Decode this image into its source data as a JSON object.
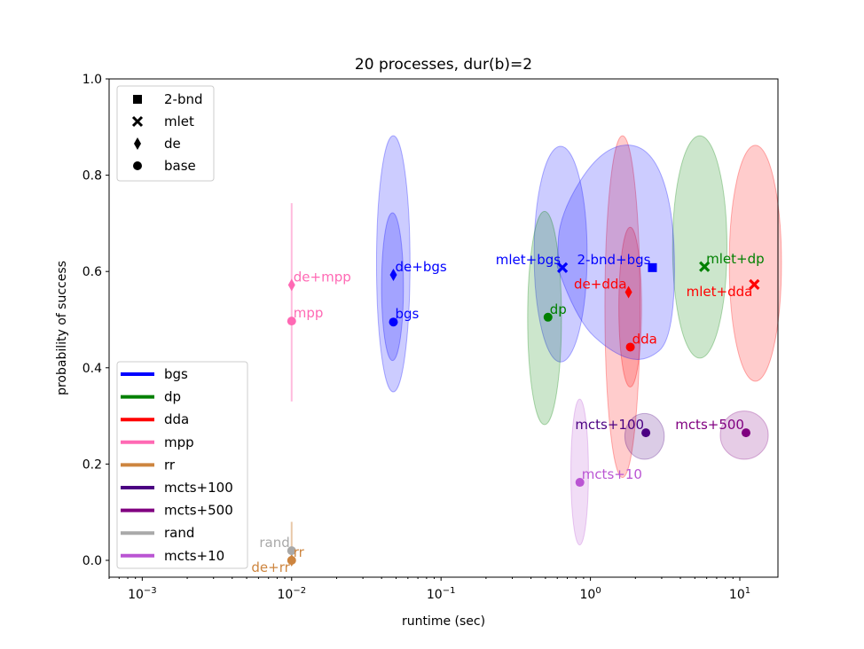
{
  "chart_data": {
    "type": "scatter",
    "title": "20 processes, dur(b)=2",
    "xlabel": "runtime (sec)",
    "ylabel": "probability of success",
    "xscale": "log",
    "xlim": [
      0.0006,
      18
    ],
    "ylim": [
      -0.035,
      1.0
    ],
    "xticks": [
      {
        "value": 0.001,
        "base": "10",
        "exp": "−3"
      },
      {
        "value": 0.01,
        "base": "10",
        "exp": "−2"
      },
      {
        "value": 0.1,
        "base": "10",
        "exp": "−1"
      },
      {
        "value": 1,
        "base": "10",
        "exp": "0"
      },
      {
        "value": 10,
        "base": "10",
        "exp": "1"
      }
    ],
    "yticks": [
      {
        "value": 0.0,
        "label": "0.0"
      },
      {
        "value": 0.2,
        "label": "0.2"
      },
      {
        "value": 0.4,
        "label": "0.4"
      },
      {
        "value": 0.6,
        "label": "0.6"
      },
      {
        "value": 0.8,
        "label": "0.8"
      },
      {
        "value": 1.0,
        "label": "1.0"
      }
    ],
    "marker_legend": [
      {
        "marker": "square",
        "label": "2-bnd"
      },
      {
        "marker": "x",
        "label": "mlet"
      },
      {
        "marker": "diamond",
        "label": "de"
      },
      {
        "marker": "circle",
        "label": "base"
      }
    ],
    "color_legend": [
      {
        "label": "bgs",
        "color": "#0000ff"
      },
      {
        "label": "dp",
        "color": "#008000"
      },
      {
        "label": "dda",
        "color": "#ff0000"
      },
      {
        "label": "mpp",
        "color": "#ff69b4"
      },
      {
        "label": "rr",
        "color": "#cd853f"
      },
      {
        "label": "mcts+100",
        "color": "#4b0082"
      },
      {
        "label": "mcts+500",
        "color": "#800080"
      },
      {
        "label": "rand",
        "color": "#a9a9a9"
      },
      {
        "label": "mcts+10",
        "color": "#ba55d3"
      }
    ],
    "points": [
      {
        "label": "bgs",
        "x": 0.048,
        "y": 0.495,
        "marker": "circle",
        "color": "#0000ff",
        "label_pos": "upper-right"
      },
      {
        "label": "de+bgs",
        "x": 0.048,
        "y": 0.593,
        "marker": "diamond",
        "color": "#0000ff",
        "label_pos": "upper-right"
      },
      {
        "label": "mlet+bgs",
        "x": 0.65,
        "y": 0.608,
        "marker": "x",
        "color": "#0000ff",
        "label_pos": "upper-left"
      },
      {
        "label": "2-bnd+bgs",
        "x": 2.6,
        "y": 0.608,
        "marker": "square",
        "color": "#0000ff",
        "label_pos": "upper-left"
      },
      {
        "label": "dp",
        "x": 0.52,
        "y": 0.505,
        "marker": "circle",
        "color": "#008000",
        "label_pos": "upper-right"
      },
      {
        "label": "mlet+dp",
        "x": 5.8,
        "y": 0.61,
        "marker": "x",
        "color": "#008000",
        "label_pos": "upper-right"
      },
      {
        "label": "dda",
        "x": 1.85,
        "y": 0.443,
        "marker": "circle",
        "color": "#ff0000",
        "label_pos": "upper-right"
      },
      {
        "label": "de+dda",
        "x": 1.8,
        "y": 0.557,
        "marker": "diamond",
        "color": "#ff0000",
        "label_pos": "upper-left"
      },
      {
        "label": "mlet+dda",
        "x": 12.5,
        "y": 0.573,
        "marker": "x",
        "color": "#ff0000",
        "label_pos": "lower-left"
      },
      {
        "label": "mpp",
        "x": 0.01,
        "y": 0.497,
        "marker": "circle",
        "color": "#ff69b4",
        "label_pos": "upper-right"
      },
      {
        "label": "de+mpp",
        "x": 0.01,
        "y": 0.572,
        "marker": "diamond",
        "color": "#ff69b4",
        "label_pos": "upper-right"
      },
      {
        "label": "rr",
        "x": 0.01,
        "y": 0.0,
        "marker": "circle",
        "color": "#cd853f",
        "label_pos": "upper-right"
      },
      {
        "label": "de+rr",
        "x": 0.01,
        "y": 0.0,
        "marker": "diamond",
        "color": "#cd853f",
        "label_pos": "lower-left"
      },
      {
        "label": "rand",
        "x": 0.01,
        "y": 0.02,
        "marker": "circle",
        "color": "#a9a9a9",
        "label_pos": "upper-left"
      },
      {
        "label": "mcts+10",
        "x": 0.85,
        "y": 0.162,
        "marker": "circle",
        "color": "#ba55d3",
        "label_pos": "upper-right"
      },
      {
        "label": "mcts+100",
        "x": 2.35,
        "y": 0.265,
        "marker": "circle",
        "color": "#4b0082",
        "label_pos": "upper-left"
      },
      {
        "label": "mcts+500",
        "x": 11.0,
        "y": 0.265,
        "marker": "circle",
        "color": "#800080",
        "label_pos": "upper-left"
      }
    ],
    "uncertainty_ellipses": [
      {
        "series": "bgs",
        "color": "#0000ff",
        "x": [
          0.037,
          0.062
        ],
        "y": [
          0.35,
          0.882
        ]
      },
      {
        "series": "de+bgs",
        "color": "#0000ff",
        "x": [
          0.04,
          0.056
        ],
        "y": [
          0.415,
          0.722
        ]
      },
      {
        "series": "mlet+bgs",
        "color": "#0000ff",
        "x": [
          0.42,
          0.95
        ],
        "y": [
          0.412,
          0.86
        ]
      },
      {
        "series": "dp",
        "color": "#008000",
        "x": [
          0.38,
          0.64
        ],
        "y": [
          0.282,
          0.725
        ]
      },
      {
        "series": "de+dda",
        "color": "#ff0000",
        "x": [
          1.25,
          2.15
        ],
        "y": [
          0.172,
          0.882
        ]
      },
      {
        "series": "dda",
        "color": "#ff0000",
        "x": [
          1.55,
          2.2
        ],
        "y": [
          0.36,
          0.692
        ]
      },
      {
        "series": "mlet+dp",
        "color": "#008000",
        "x": [
          3.55,
          8.2
        ],
        "y": [
          0.42,
          0.882
        ]
      },
      {
        "series": "mlet+dda",
        "color": "#ff0000",
        "x": [
          8.5,
          19.0
        ],
        "y": [
          0.372,
          0.862
        ]
      },
      {
        "series": "mcts+10",
        "color": "#ba55d3",
        "x": [
          0.74,
          0.97
        ],
        "y": [
          0.032,
          0.335
        ]
      },
      {
        "series": "mcts+100",
        "color": "#4b0082",
        "x": [
          1.7,
          3.12
        ],
        "y": [
          0.21,
          0.305
        ]
      },
      {
        "series": "mcts+500",
        "color": "#800080",
        "x": [
          7.4,
          15.5
        ],
        "y": [
          0.21,
          0.31
        ]
      }
    ],
    "error_bars": [
      {
        "series": "mpp",
        "color": "#ff69b4",
        "x": 0.01,
        "y": [
          0.33,
          0.742
        ]
      },
      {
        "series": "rr/rand",
        "color": "#cd853f",
        "x": 0.01,
        "y": [
          0.0,
          0.08
        ]
      }
    ],
    "big_blob": {
      "series": "2-bnd+bgs",
      "color": "#0000ff"
    }
  }
}
